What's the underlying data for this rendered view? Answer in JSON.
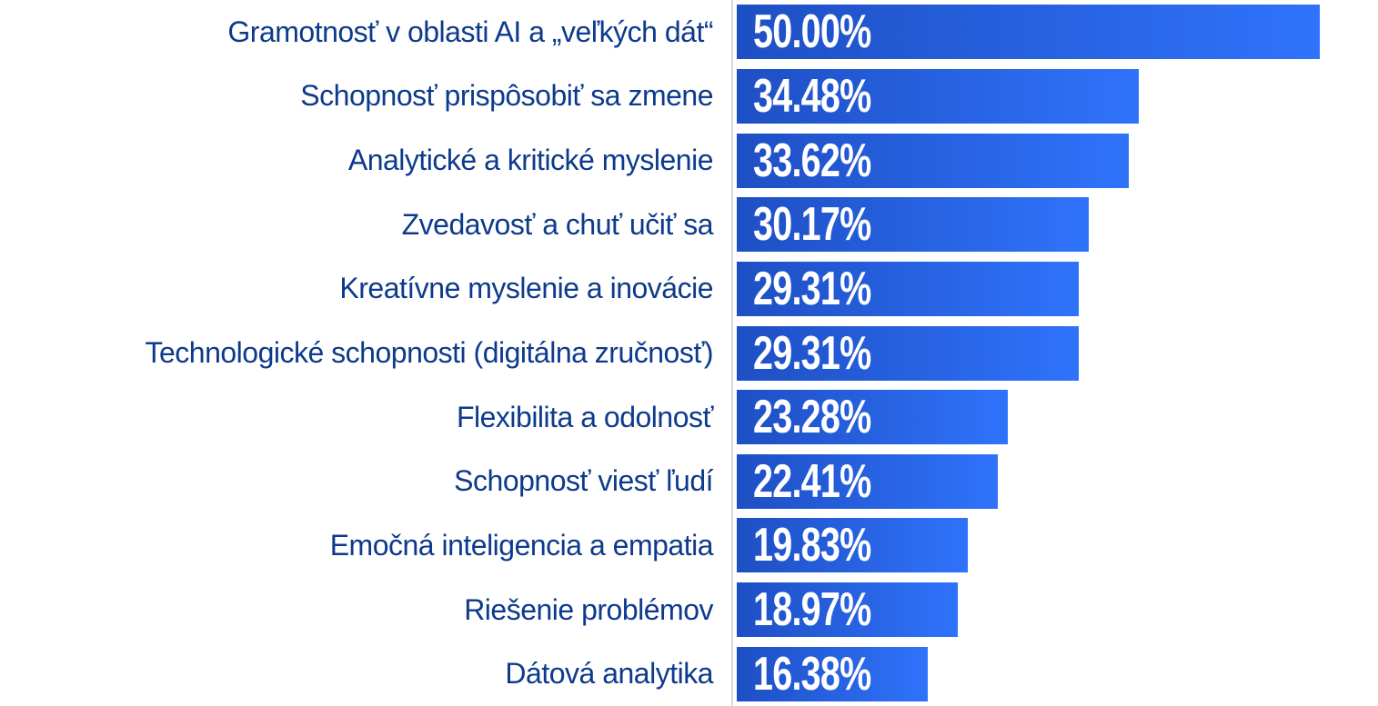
{
  "chart_data": {
    "type": "bar",
    "orientation": "horizontal",
    "title": "",
    "xlabel": "",
    "ylabel": "",
    "grid": false,
    "legend": false,
    "xlim": [
      0,
      55
    ],
    "categories": [
      "Gramotnosť v oblasti AI a „veľkých dát“",
      "Schopnosť prispôsobiť sa zmene",
      "Analytické a kritické myslenie",
      "Zvedavosť a chuť učiť sa",
      "Kreatívne myslenie a inovácie",
      "Technologické schopnosti (digitálna zručnosť)",
      "Flexibilita a odolnosť",
      "Schopnosť viesť ľudí",
      "Emočná inteligencia a empatia",
      "Riešenie problémov",
      "Dátová analytika"
    ],
    "values": [
      50.0,
      34.48,
      33.62,
      30.17,
      29.31,
      29.31,
      23.28,
      22.41,
      19.83,
      18.97,
      16.38
    ],
    "value_labels": [
      "50.00%",
      "34.48%",
      "33.62%",
      "30.17%",
      "29.31%",
      "29.31%",
      "23.28%",
      "22.41%",
      "19.83%",
      "18.97%",
      "16.38%"
    ],
    "colors": {
      "bar_gradient_start": "#1e4fc4",
      "bar_gradient_end": "#2f73fb",
      "category_label": "#0d3a8d",
      "value_label": "#ffffff",
      "axis_line": "#d9d9d9",
      "background": "#ffffff"
    }
  }
}
